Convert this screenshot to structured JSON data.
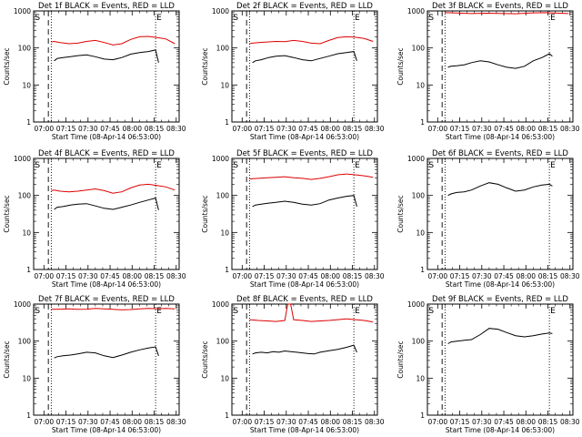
{
  "figure": {
    "x_ticks": [
      "07:00",
      "07:15",
      "07:30",
      "07:45",
      "08:00",
      "08:15",
      "08:30"
    ],
    "y_ticks": [
      "1",
      "10",
      "100",
      "1000"
    ],
    "xlabel": "Start Time (08-Apr-14 06:53:00)",
    "ylabel": "Counts/sec",
    "marker_left": "S",
    "marker_right": "E",
    "colors": {
      "events": "#000000",
      "lld": "#dd0000"
    }
  },
  "chart_data": [
    {
      "type": "line",
      "title": "Det 1f BLACK = Events, RED = LLD",
      "xlabel": "Start Time (08-Apr-14 06:53:00)",
      "ylabel": "Counts/sec",
      "y_scale": "log",
      "ylim": [
        1,
        1000
      ],
      "x_units": "minutes after 06:53:00",
      "xlim": [
        0,
        99
      ],
      "vlines_dashed": [
        10
      ],
      "vlines_dotted": [
        12,
        83
      ],
      "series": [
        {
          "name": "Events",
          "color": "#000000",
          "x": [
            14,
            16,
            20,
            25,
            30,
            36,
            42,
            48,
            54,
            60,
            66,
            72,
            78,
            83,
            85
          ],
          "y": [
            45,
            52,
            55,
            58,
            62,
            65,
            58,
            50,
            48,
            55,
            68,
            75,
            80,
            88,
            40
          ]
        },
        {
          "name": "LLD",
          "color": "#dd0000",
          "x": [
            12,
            14,
            18,
            24,
            30,
            36,
            42,
            48,
            54,
            60,
            66,
            72,
            78,
            84,
            90,
            96
          ],
          "y": [
            145,
            150,
            140,
            130,
            135,
            150,
            160,
            140,
            120,
            130,
            170,
            200,
            205,
            190,
            175,
            130
          ]
        }
      ]
    },
    {
      "type": "line",
      "title": "Det 2f BLACK = Events, RED = LLD",
      "xlabel": "Start Time (08-Apr-14 06:53:00)",
      "ylabel": "Counts/sec",
      "y_scale": "log",
      "ylim": [
        1,
        1000
      ],
      "x_units": "minutes after 06:53:00",
      "xlim": [
        0,
        99
      ],
      "vlines_dashed": [
        10
      ],
      "vlines_dotted": [
        12,
        83
      ],
      "series": [
        {
          "name": "Events",
          "color": "#000000",
          "x": [
            14,
            16,
            20,
            25,
            30,
            36,
            42,
            48,
            54,
            60,
            66,
            72,
            78,
            83,
            85
          ],
          "y": [
            40,
            45,
            48,
            55,
            60,
            62,
            55,
            48,
            45,
            52,
            60,
            70,
            75,
            80,
            45
          ]
        },
        {
          "name": "LLD",
          "color": "#dd0000",
          "x": [
            12,
            14,
            18,
            24,
            30,
            36,
            42,
            48,
            54,
            60,
            66,
            72,
            78,
            84,
            90,
            96
          ],
          "y": [
            130,
            135,
            140,
            145,
            150,
            148,
            160,
            150,
            135,
            130,
            160,
            190,
            200,
            195,
            180,
            150
          ]
        }
      ]
    },
    {
      "type": "line",
      "title": "Det 3f BLACK = Events, RED = LLD",
      "xlabel": "Start Time (08-Apr-14 06:53:00)",
      "ylabel": "Counts/sec",
      "y_scale": "log",
      "ylim": [
        1,
        1000
      ],
      "x_units": "minutes after 06:53:00",
      "xlim": [
        0,
        99
      ],
      "vlines_dashed": [
        10
      ],
      "vlines_dotted": [
        12,
        83
      ],
      "series": [
        {
          "name": "Events",
          "color": "#000000",
          "x": [
            14,
            16,
            20,
            25,
            30,
            36,
            42,
            48,
            54,
            60,
            66,
            72,
            78,
            83,
            85
          ],
          "y": [
            30,
            32,
            33,
            35,
            40,
            45,
            42,
            35,
            30,
            28,
            32,
            45,
            55,
            70,
            60
          ]
        },
        {
          "name": "LLD",
          "color": "#dd0000",
          "x": [
            12,
            20,
            30,
            40,
            50,
            60,
            70,
            80,
            90,
            96
          ],
          "y": [
            900,
            880,
            850,
            870,
            860,
            840,
            880,
            900,
            870,
            850
          ]
        }
      ]
    },
    {
      "type": "line",
      "title": "Det 4f BLACK = Events, RED = LLD",
      "xlabel": "Start Time (08-Apr-14 06:53:00)",
      "ylabel": "Counts/sec",
      "y_scale": "log",
      "ylim": [
        1,
        1000
      ],
      "x_units": "minutes after 06:53:00",
      "xlim": [
        0,
        99
      ],
      "vlines_dashed": [
        10
      ],
      "vlines_dotted": [
        12,
        83
      ],
      "series": [
        {
          "name": "Events",
          "color": "#000000",
          "x": [
            14,
            16,
            20,
            25,
            30,
            36,
            42,
            48,
            54,
            60,
            66,
            72,
            78,
            83,
            85
          ],
          "y": [
            42,
            48,
            50,
            55,
            58,
            60,
            52,
            45,
            42,
            48,
            55,
            65,
            75,
            85,
            40
          ]
        },
        {
          "name": "LLD",
          "color": "#dd0000",
          "x": [
            12,
            14,
            18,
            24,
            30,
            36,
            42,
            48,
            54,
            60,
            66,
            72,
            78,
            84,
            90,
            96
          ],
          "y": [
            135,
            140,
            130,
            125,
            130,
            140,
            150,
            135,
            115,
            125,
            160,
            190,
            200,
            185,
            170,
            140
          ]
        }
      ]
    },
    {
      "type": "line",
      "title": "Det 5f BLACK = Events, RED = LLD",
      "xlabel": "Start Time (08-Apr-14 06:53:00)",
      "ylabel": "Counts/sec",
      "y_scale": "log",
      "ylim": [
        1,
        1000
      ],
      "x_units": "minutes after 06:53:00",
      "xlim": [
        0,
        99
      ],
      "vlines_dashed": [
        10
      ],
      "vlines_dotted": [
        12,
        83
      ],
      "series": [
        {
          "name": "Events",
          "color": "#000000",
          "x": [
            14,
            16,
            20,
            25,
            30,
            36,
            42,
            48,
            54,
            60,
            66,
            72,
            78,
            83,
            85
          ],
          "y": [
            50,
            55,
            58,
            62,
            65,
            70,
            65,
            58,
            55,
            60,
            75,
            85,
            95,
            100,
            50
          ]
        },
        {
          "name": "LLD",
          "color": "#dd0000",
          "x": [
            12,
            18,
            24,
            30,
            36,
            42,
            48,
            54,
            60,
            66,
            72,
            78,
            84,
            90,
            96
          ],
          "y": [
            280,
            290,
            300,
            310,
            320,
            300,
            290,
            270,
            290,
            320,
            360,
            380,
            360,
            340,
            310
          ]
        }
      ]
    },
    {
      "type": "line",
      "title": "Det 6f BLACK = Events, RED = LLD",
      "xlabel": "Start Time (08-Apr-14 06:53:00)",
      "ylabel": "Counts/sec",
      "y_scale": "log",
      "ylim": [
        1,
        1000
      ],
      "x_units": "minutes after 06:53:00",
      "xlim": [
        0,
        99
      ],
      "vlines_dashed": [
        10
      ],
      "vlines_dotted": [
        12,
        83
      ],
      "series": [
        {
          "name": "Events",
          "color": "#000000",
          "x": [
            14,
            16,
            20,
            25,
            30,
            36,
            42,
            48,
            54,
            60,
            66,
            72,
            78,
            83,
            85
          ],
          "y": [
            100,
            110,
            120,
            125,
            140,
            180,
            220,
            200,
            160,
            130,
            140,
            170,
            190,
            200,
            180
          ]
        }
      ]
    },
    {
      "type": "line",
      "title": "Det 7f BLACK = Events, RED = LLD",
      "xlabel": "Start Time (08-Apr-14 06:53:00)",
      "ylabel": "Counts/sec",
      "y_scale": "log",
      "ylim": [
        1,
        1000
      ],
      "x_units": "minutes after 06:53:00",
      "xlim": [
        0,
        99
      ],
      "vlines_dashed": [
        10
      ],
      "vlines_dotted": [
        12,
        83
      ],
      "series": [
        {
          "name": "Events",
          "color": "#000000",
          "x": [
            14,
            16,
            20,
            25,
            30,
            36,
            42,
            48,
            54,
            60,
            66,
            72,
            78,
            83,
            85
          ],
          "y": [
            35,
            38,
            40,
            42,
            45,
            50,
            48,
            40,
            36,
            42,
            50,
            58,
            65,
            70,
            40
          ]
        },
        {
          "name": "LLD",
          "color": "#dd0000",
          "x": [
            12,
            18,
            24,
            30,
            36,
            42,
            48,
            54,
            60,
            66,
            72,
            78,
            84,
            90,
            96
          ],
          "y": [
            720,
            730,
            740,
            720,
            730,
            760,
            740,
            720,
            700,
            710,
            740,
            760,
            750,
            760,
            740
          ]
        }
      ]
    },
    {
      "type": "line",
      "title": "Det 8f BLACK = Events, RED = LLD",
      "xlabel": "Start Time (08-Apr-14 06:53:00)",
      "ylabel": "Counts/sec",
      "y_scale": "log",
      "ylim": [
        1,
        1000
      ],
      "x_units": "minutes after 06:53:00",
      "xlim": [
        0,
        99
      ],
      "vlines_dashed": [
        10
      ],
      "vlines_dotted": [
        12,
        83
      ],
      "series": [
        {
          "name": "Events",
          "color": "#000000",
          "x": [
            14,
            16,
            20,
            24,
            28,
            32,
            36,
            40,
            44,
            48,
            52,
            56,
            60,
            66,
            72,
            78,
            83,
            85
          ],
          "y": [
            45,
            48,
            50,
            48,
            52,
            50,
            54,
            52,
            50,
            48,
            46,
            45,
            50,
            55,
            60,
            68,
            78,
            50
          ]
        },
        {
          "name": "LLD",
          "color": "#dd0000",
          "x": [
            12,
            18,
            24,
            30,
            36,
            38,
            40,
            42,
            48,
            54,
            60,
            66,
            72,
            78,
            84,
            90,
            96
          ],
          "y": [
            380,
            360,
            350,
            340,
            360,
            1000,
            1000,
            380,
            360,
            340,
            350,
            360,
            380,
            400,
            380,
            360,
            330
          ]
        }
      ]
    },
    {
      "type": "line",
      "title": "Det 9f BLACK = Events, RED = LLD",
      "xlabel": "Start Time (08-Apr-14 06:53:00)",
      "ylabel": "Counts/sec",
      "y_scale": "log",
      "ylim": [
        1,
        1000
      ],
      "x_units": "minutes after 06:53:00",
      "xlim": [
        0,
        99
      ],
      "vlines_dashed": [
        10
      ],
      "vlines_dotted": [
        12,
        83
      ],
      "series": [
        {
          "name": "Events",
          "color": "#000000",
          "x": [
            14,
            16,
            20,
            25,
            30,
            36,
            42,
            48,
            54,
            60,
            66,
            72,
            78,
            83,
            85
          ],
          "y": [
            85,
            95,
            100,
            105,
            110,
            150,
            220,
            210,
            170,
            140,
            130,
            140,
            155,
            165,
            160
          ]
        }
      ]
    }
  ]
}
